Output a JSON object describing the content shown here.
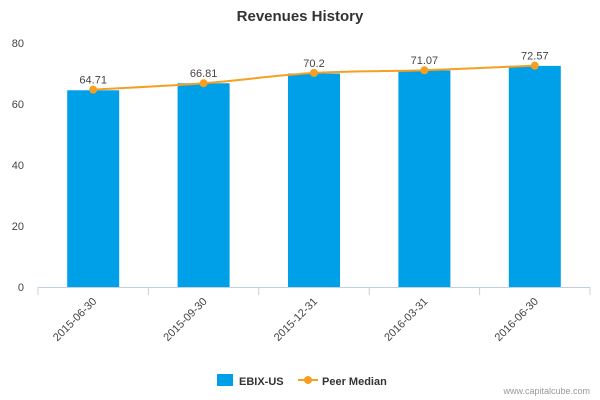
{
  "chart_data": {
    "type": "bar",
    "title": "Revenues History",
    "xlabel": "",
    "ylabel": "",
    "categories": [
      "2015-06-30",
      "2015-09-30",
      "2015-12-31",
      "2016-03-31",
      "2016-06-30"
    ],
    "series": [
      {
        "name": "EBIX-US",
        "type": "bar",
        "color": "#00a0e9",
        "values": [
          64.5,
          66.8,
          70.0,
          71.0,
          72.5
        ]
      },
      {
        "name": "Peer Median",
        "type": "line",
        "color": "#f5a023",
        "values": [
          64.71,
          66.81,
          70.2,
          71.07,
          72.57
        ],
        "labels": [
          "64.71",
          "66.81",
          "70.2",
          "71.07",
          "72.57"
        ]
      }
    ],
    "ylim": [
      0,
      80
    ],
    "yticks": [
      0,
      20,
      40,
      60,
      80
    ],
    "grid": false,
    "legend_position": "bottom-center"
  },
  "credit": "www.capitalcube.com"
}
